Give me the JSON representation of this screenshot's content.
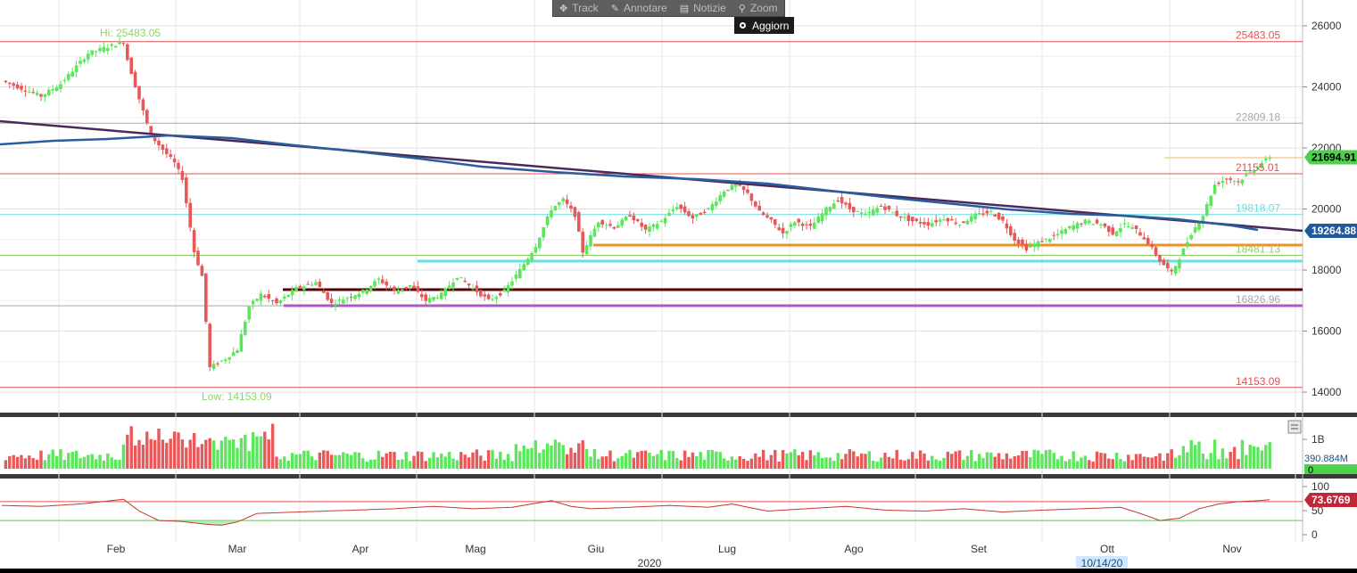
{
  "toolbar": {
    "track_label": "Track",
    "annotate_label": "Annotare",
    "news_label": "Notizie",
    "zoom_label": "Zoom",
    "refresh_label": "Aggiorn"
  },
  "colors": {
    "up": "#5ce65c",
    "down": "#e85858",
    "trend_line": "#4a2a5a",
    "moving_average": "#2a5d9e",
    "rsi_line": "#c0392b",
    "high_line": "#e05050",
    "fib_lines": "#66e0e0",
    "support_orange": "#f0901e",
    "support_cyan": "#66e0e0",
    "support_dark": "#5a0000",
    "support_purple": "#b057c8"
  },
  "chart_data": {
    "type": "candlestick",
    "price_axis": {
      "ticks": [
        "26000",
        "24000",
        "22000",
        "20000",
        "18000",
        "16000",
        "14000"
      ],
      "ylim": [
        13200,
        26900
      ]
    },
    "volume_axis": {
      "ticks": [
        "1B"
      ],
      "zero_label": "0"
    },
    "rsi_axis": {
      "ticks": [
        "100",
        "50",
        "0"
      ]
    },
    "month_labels": [
      "Feb",
      "Mar",
      "Apr",
      "Mag",
      "Giu",
      "Lug",
      "Ago",
      "Set",
      "Ott",
      "Nov"
    ],
    "year_label": "2020",
    "cursor_date": "10/14/20",
    "high_label": "Hi: 25483.05",
    "low_label": "Low: 14153.09",
    "levels": [
      {
        "name": "high",
        "value": 25483.05,
        "label": "25483.05",
        "color": "#e05050"
      },
      {
        "name": "fib-1",
        "value": 22809.18,
        "label": "22809.18",
        "color": "#a8a8a8"
      },
      {
        "name": "fib-2",
        "value": 21155.01,
        "label": "21155.01",
        "color": "#e05050"
      },
      {
        "name": "fib-3",
        "value": 19818.07,
        "label": "19818.07",
        "color": "#66e0e0"
      },
      {
        "name": "fib-4",
        "value": 18481.13,
        "label": "18481.13",
        "color": "#8ccc66"
      },
      {
        "name": "fib-5",
        "value": 16826.96,
        "label": "16826.96",
        "color": "#a8a8a8"
      },
      {
        "name": "low",
        "value": 14153.09,
        "label": "14153.09",
        "color": "#e05050"
      }
    ],
    "last_price": {
      "value": 21694.91,
      "label": "21694.91"
    },
    "moving_average_last": {
      "value": 19264.88,
      "label": "19264.88"
    },
    "volume_last": {
      "value": 390.884,
      "label": "390.884M"
    },
    "rsi_last": {
      "value": 73.6769,
      "label": "73.6769"
    },
    "ohlc_anchors": [
      [
        0,
        24200
      ],
      [
        10,
        23700
      ],
      [
        15,
        24100
      ],
      [
        22,
        25100
      ],
      [
        31,
        25483
      ],
      [
        32,
        24900
      ],
      [
        35,
        23600
      ],
      [
        38,
        22400
      ],
      [
        42,
        21800
      ],
      [
        44,
        21500
      ],
      [
        46,
        21000
      ],
      [
        49,
        18600
      ],
      [
        51,
        17800
      ],
      [
        53,
        14800
      ],
      [
        57,
        15100
      ],
      [
        60,
        15400
      ],
      [
        63,
        16800
      ],
      [
        66,
        17200
      ],
      [
        70,
        16900
      ],
      [
        75,
        17400
      ],
      [
        80,
        17600
      ],
      [
        84,
        16900
      ],
      [
        88,
        17100
      ],
      [
        92,
        17300
      ],
      [
        96,
        17700
      ],
      [
        100,
        17300
      ],
      [
        104,
        17500
      ],
      [
        108,
        17000
      ],
      [
        112,
        17200
      ],
      [
        116,
        17800
      ],
      [
        120,
        17400
      ],
      [
        124,
        17000
      ],
      [
        128,
        17300
      ],
      [
        132,
        18000
      ],
      [
        136,
        18800
      ],
      [
        140,
        20000
      ],
      [
        143,
        20300
      ],
      [
        146,
        19800
      ],
      [
        148,
        18600
      ],
      [
        152,
        19600
      ],
      [
        156,
        19400
      ],
      [
        160,
        19800
      ],
      [
        164,
        19300
      ],
      [
        168,
        19600
      ],
      [
        172,
        20100
      ],
      [
        176,
        19700
      ],
      [
        180,
        20000
      ],
      [
        184,
        20600
      ],
      [
        187,
        20800
      ],
      [
        190,
        20500
      ],
      [
        193,
        19900
      ],
      [
        196,
        19600
      ],
      [
        199,
        19200
      ],
      [
        202,
        19600
      ],
      [
        206,
        19400
      ],
      [
        210,
        20000
      ],
      [
        213,
        20300
      ],
      [
        216,
        20000
      ],
      [
        220,
        19800
      ],
      [
        224,
        20100
      ],
      [
        228,
        19800
      ],
      [
        232,
        19600
      ],
      [
        236,
        19500
      ],
      [
        240,
        19700
      ],
      [
        244,
        19500
      ],
      [
        248,
        19800
      ],
      [
        252,
        19900
      ],
      [
        255,
        19600
      ],
      [
        258,
        19000
      ],
      [
        261,
        18700
      ],
      [
        264,
        18900
      ],
      [
        268,
        19100
      ],
      [
        272,
        19400
      ],
      [
        276,
        19600
      ],
      [
        280,
        19500
      ],
      [
        283,
        19200
      ],
      [
        286,
        19500
      ],
      [
        289,
        19300
      ],
      [
        292,
        18900
      ],
      [
        295,
        18300
      ],
      [
        298,
        17900
      ],
      [
        300,
        18400
      ],
      [
        303,
        19200
      ],
      [
        306,
        19800
      ],
      [
        309,
        20800
      ],
      [
        312,
        21000
      ],
      [
        315,
        20900
      ],
      [
        318,
        21200
      ],
      [
        321,
        21500
      ],
      [
        323,
        21695
      ]
    ],
    "rsi_anchors": [
      [
        0,
        62
      ],
      [
        10,
        60
      ],
      [
        20,
        65
      ],
      [
        31,
        75
      ],
      [
        35,
        50
      ],
      [
        40,
        30
      ],
      [
        46,
        28
      ],
      [
        52,
        22
      ],
      [
        56,
        20
      ],
      [
        60,
        27
      ],
      [
        65,
        45
      ],
      [
        75,
        48
      ],
      [
        90,
        52
      ],
      [
        100,
        55
      ],
      [
        110,
        60
      ],
      [
        120,
        55
      ],
      [
        130,
        58
      ],
      [
        140,
        72
      ],
      [
        145,
        60
      ],
      [
        150,
        55
      ],
      [
        160,
        58
      ],
      [
        170,
        62
      ],
      [
        180,
        58
      ],
      [
        186,
        65
      ],
      [
        195,
        50
      ],
      [
        205,
        55
      ],
      [
        215,
        60
      ],
      [
        225,
        52
      ],
      [
        235,
        50
      ],
      [
        245,
        55
      ],
      [
        255,
        48
      ],
      [
        265,
        52
      ],
      [
        275,
        55
      ],
      [
        285,
        58
      ],
      [
        290,
        45
      ],
      [
        295,
        30
      ],
      [
        300,
        35
      ],
      [
        305,
        55
      ],
      [
        310,
        65
      ],
      [
        315,
        70
      ],
      [
        320,
        72
      ],
      [
        323,
        74
      ]
    ]
  }
}
